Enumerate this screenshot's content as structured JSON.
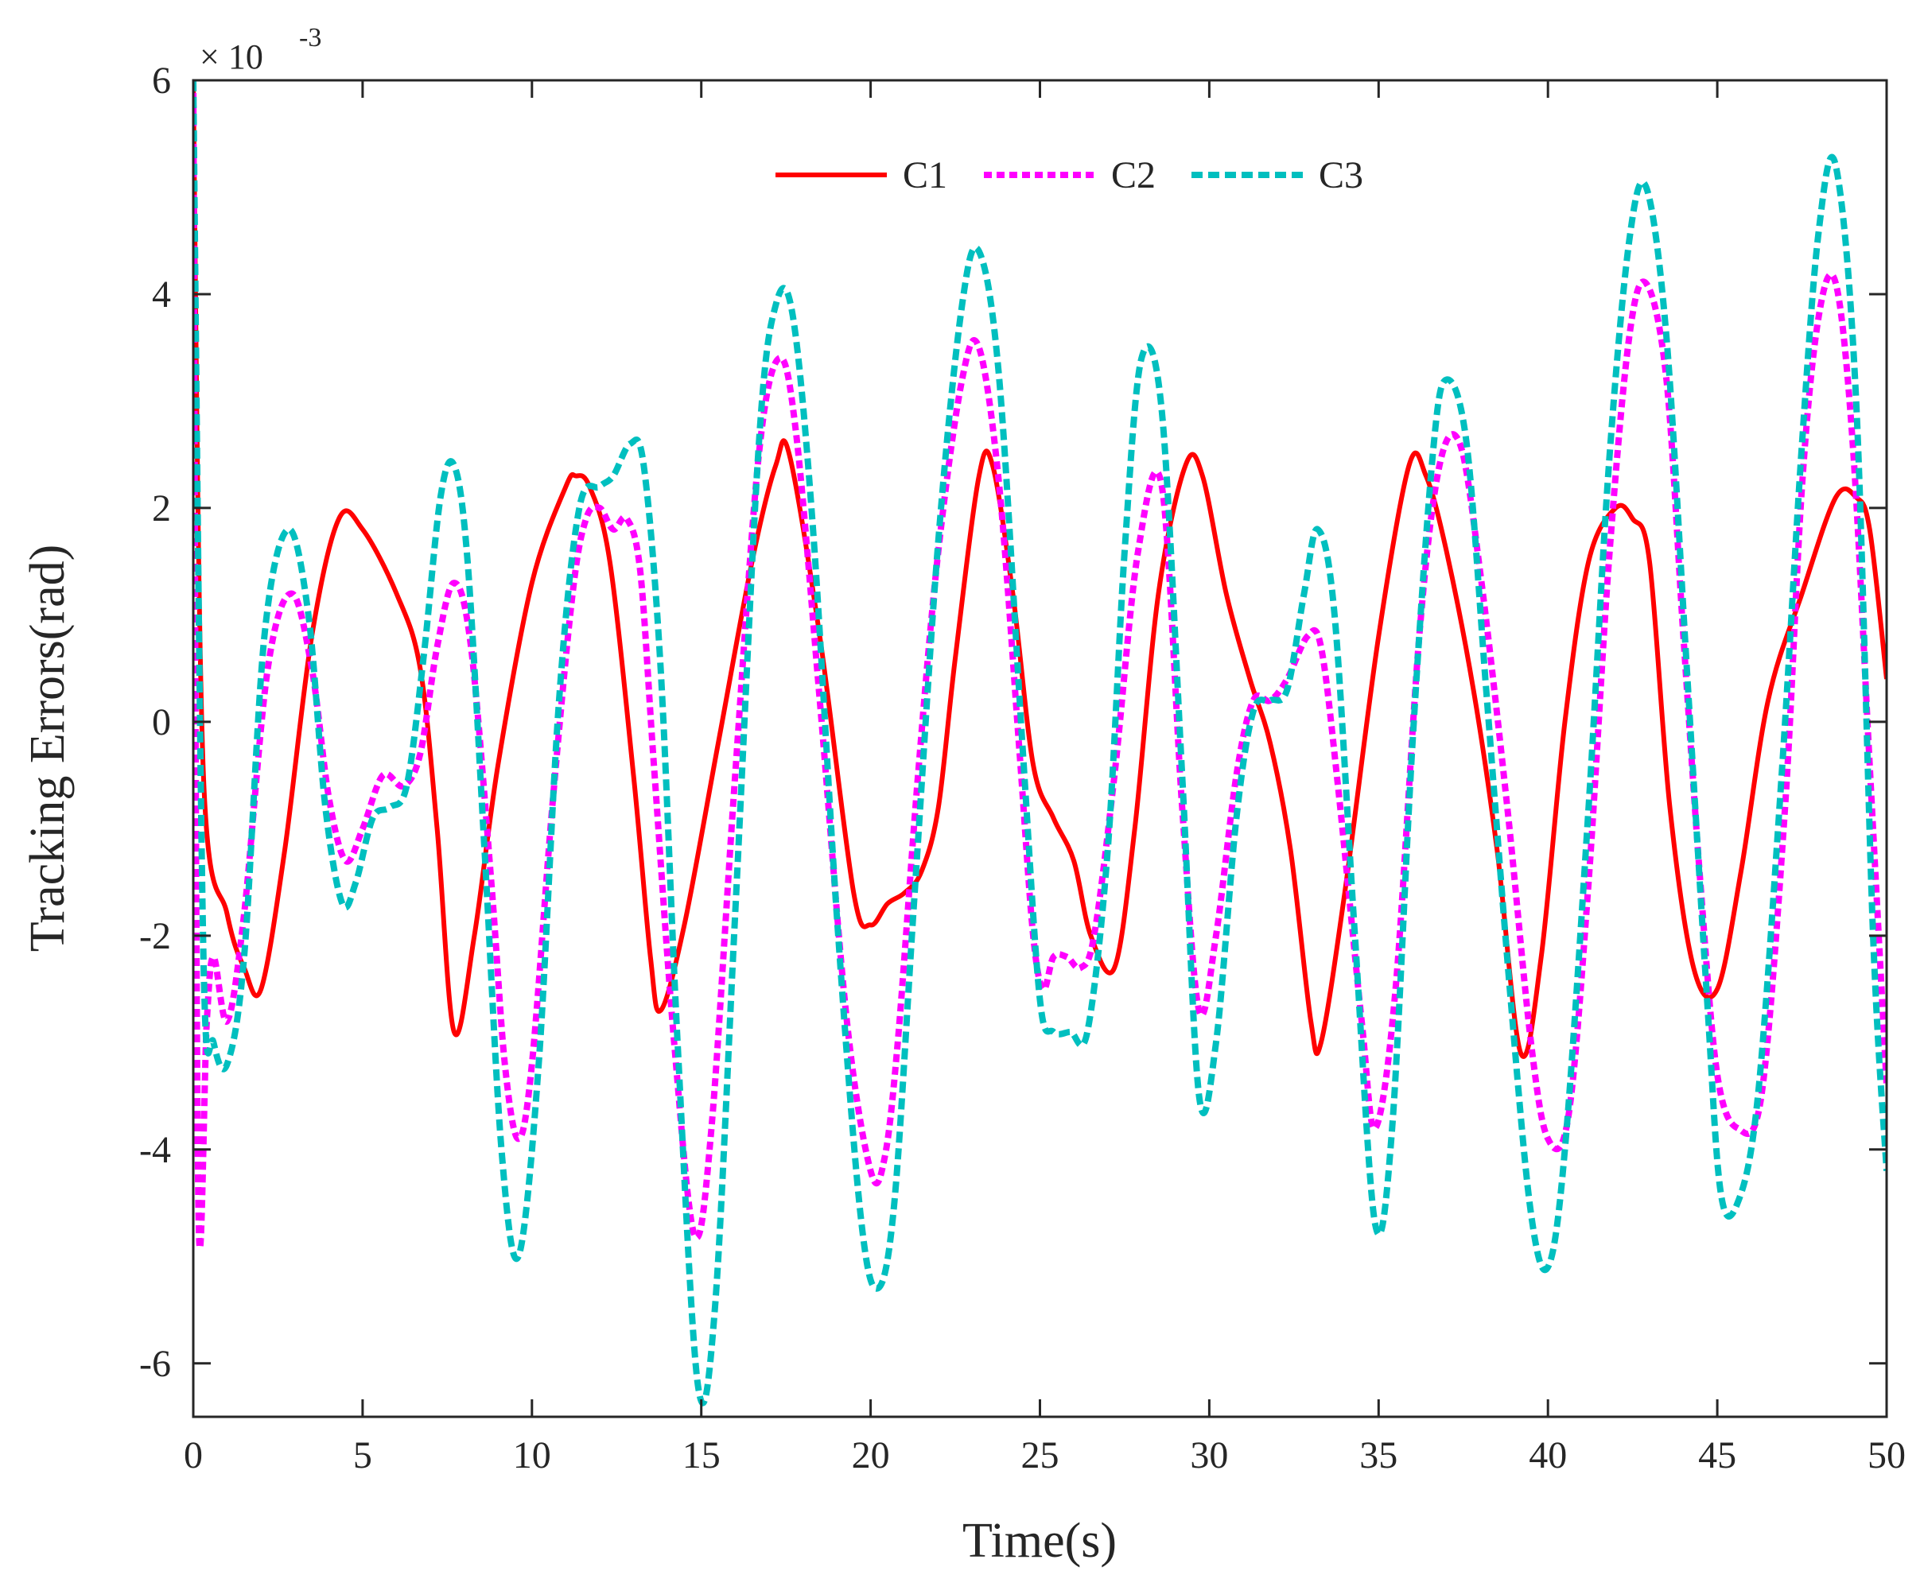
{
  "chart_data": {
    "type": "line",
    "title": "",
    "xlabel": "Time(s)",
    "ylabel": "Tracking Errors(rad)",
    "exponent_prefix": "× 10",
    "exponent_power": "-3",
    "xlim": [
      0,
      50
    ],
    "ylim": [
      -6.5,
      6
    ],
    "xticks": [
      0,
      5,
      10,
      15,
      20,
      25,
      30,
      35,
      40,
      45,
      50
    ],
    "yticks": [
      -6,
      -4,
      -2,
      0,
      2,
      4,
      6
    ],
    "xtick_labels": [
      "0",
      "5",
      "10",
      "15",
      "20",
      "25",
      "30",
      "35",
      "40",
      "45",
      "50"
    ],
    "ytick_labels": [
      "-6",
      "-4",
      "-2",
      "0",
      "2",
      "4",
      "6"
    ],
    "legend_position": "top-center",
    "grid": false,
    "series": [
      {
        "name": "C1",
        "color": "#ff0000",
        "style": "solid",
        "x": [
          0,
          0.3,
          1.0,
          1.5,
          2.0,
          2.7,
          3.5,
          4.3,
          5.0,
          6.0,
          6.7,
          7.2,
          7.7,
          8.3,
          9.0,
          10.0,
          11.0,
          11.3,
          11.7,
          12.3,
          13.0,
          13.5,
          13.8,
          14.5,
          15.5,
          16.5,
          17.2,
          17.6,
          18.5,
          19.5,
          20.0,
          20.5,
          21.0,
          21.5,
          22.0,
          22.5,
          23.2,
          23.6,
          24.2,
          24.8,
          25.4,
          26.0,
          26.5,
          27.2,
          27.8,
          28.5,
          29.3,
          29.8,
          30.5,
          31.2,
          31.8,
          32.4,
          33.0,
          33.3,
          34.0,
          35.0,
          35.9,
          36.4,
          37.0,
          37.8,
          38.5,
          39.2,
          39.8,
          40.5,
          41.2,
          42.0,
          42.5,
          43.0,
          43.6,
          44.3,
          45.0,
          45.7,
          46.5,
          47.5,
          48.5,
          49.1,
          49.5,
          50.0
        ],
        "values": [
          6.0,
          -0.5,
          -1.8,
          -2.3,
          -2.5,
          -1.2,
          0.8,
          1.9,
          1.8,
          1.2,
          0.5,
          -1.0,
          -2.9,
          -2.0,
          -0.4,
          1.3,
          2.2,
          2.3,
          2.2,
          1.5,
          -0.5,
          -2.2,
          -2.7,
          -1.9,
          -0.2,
          1.5,
          2.4,
          2.5,
          0.8,
          -1.6,
          -1.9,
          -1.7,
          -1.6,
          -1.4,
          -0.8,
          0.6,
          2.3,
          2.4,
          1.2,
          -0.4,
          -0.9,
          -1.3,
          -2.0,
          -2.3,
          -1.0,
          1.2,
          2.4,
          2.3,
          1.2,
          0.4,
          -0.2,
          -1.2,
          -2.8,
          -3.0,
          -1.6,
          0.8,
          2.4,
          2.3,
          1.6,
          0.3,
          -1.2,
          -3.1,
          -2.2,
          0.0,
          1.5,
          2.0,
          1.9,
          1.5,
          -0.8,
          -2.3,
          -2.5,
          -1.4,
          0.2,
          1.2,
          2.1,
          2.1,
          1.8,
          0.4
        ]
      },
      {
        "name": "C2",
        "color": "#ff00ff",
        "style": "dotted",
        "x": [
          0,
          0.15,
          0.4,
          0.6,
          1.0,
          1.5,
          2.2,
          2.9,
          3.5,
          4.0,
          4.5,
          5.0,
          5.6,
          6.2,
          6.7,
          7.2,
          7.7,
          8.2,
          8.8,
          9.2,
          9.6,
          10.0,
          10.6,
          11.2,
          11.6,
          12.0,
          12.4,
          12.8,
          13.2,
          13.6,
          14.2,
          14.8,
          15.3,
          16.0,
          16.7,
          17.3,
          17.8,
          18.5,
          19.3,
          20.0,
          20.4,
          20.8,
          21.4,
          22.0,
          22.7,
          23.2,
          23.8,
          24.4,
          24.8,
          25.1,
          25.4,
          25.8,
          26.2,
          26.6,
          27.2,
          27.9,
          28.6,
          29.2,
          29.7,
          30.2,
          30.8,
          31.3,
          31.8,
          32.3,
          32.9,
          33.3,
          33.8,
          34.5,
          34.9,
          35.5,
          36.2,
          36.8,
          37.4,
          38.0,
          38.8,
          39.5,
          40.0,
          40.6,
          41.2,
          41.8,
          42.4,
          42.9,
          43.5,
          44.0,
          44.5,
          45.0,
          45.6,
          46.3,
          47.0,
          47.5,
          48.0,
          48.5,
          49.0,
          49.5,
          50.0
        ],
        "values": [
          6.0,
          -4.5,
          -2.8,
          -2.2,
          -2.8,
          -1.8,
          0.5,
          1.2,
          0.5,
          -0.7,
          -1.3,
          -1.0,
          -0.5,
          -0.6,
          -0.3,
          0.7,
          1.3,
          0.7,
          -1.5,
          -3.2,
          -3.9,
          -3.2,
          -0.8,
          1.2,
          1.9,
          2.0,
          1.8,
          1.9,
          1.4,
          -0.4,
          -3.0,
          -4.8,
          -3.8,
          -0.5,
          2.5,
          3.4,
          2.7,
          0.2,
          -2.8,
          -4.2,
          -4.1,
          -3.0,
          -0.5,
          1.6,
          3.2,
          3.5,
          2.2,
          -0.3,
          -2.0,
          -2.5,
          -2.2,
          -2.2,
          -2.3,
          -2.0,
          -0.5,
          1.6,
          2.2,
          -0.8,
          -2.7,
          -2.0,
          -0.5,
          0.2,
          0.2,
          0.4,
          0.8,
          0.7,
          -0.6,
          -2.8,
          -3.8,
          -2.5,
          0.8,
          2.4,
          2.6,
          1.4,
          -0.8,
          -3.0,
          -3.9,
          -3.7,
          -1.5,
          1.5,
          3.6,
          4.1,
          3.2,
          0.8,
          -1.5,
          -3.3,
          -3.8,
          -3.5,
          -0.8,
          2.2,
          3.8,
          4.1,
          2.6,
          -0.4,
          -3.4
        ]
      },
      {
        "name": "C3",
        "color": "#00bfbf",
        "style": "dashed",
        "x": [
          0,
          0.3,
          0.6,
          1.0,
          1.5,
          2.1,
          2.8,
          3.4,
          3.9,
          4.4,
          4.8,
          5.3,
          5.8,
          6.3,
          6.8,
          7.3,
          7.7,
          8.1,
          8.6,
          9.1,
          9.6,
          10.2,
          10.8,
          11.4,
          12.0,
          12.4,
          12.9,
          13.3,
          13.8,
          14.3,
          14.9,
          15.4,
          16.0,
          16.7,
          17.2,
          17.7,
          18.3,
          19.0,
          19.7,
          20.2,
          20.7,
          21.3,
          22.0,
          22.7,
          23.2,
          23.8,
          24.5,
          25.0,
          25.4,
          25.9,
          26.4,
          27.0,
          27.5,
          28.0,
          28.6,
          29.2,
          29.7,
          30.2,
          30.8,
          31.3,
          31.8,
          32.3,
          32.8,
          33.2,
          33.7,
          34.3,
          34.9,
          35.4,
          36.0,
          36.6,
          37.0,
          37.6,
          38.2,
          38.9,
          39.5,
          40.0,
          40.5,
          41.2,
          41.8,
          42.4,
          42.9,
          43.5,
          44.1,
          44.7,
          45.1,
          45.6,
          46.2,
          46.9,
          47.5,
          48.0,
          48.5,
          49.1,
          49.6,
          50.0
        ],
        "values": [
          6.0,
          -2.2,
          -3.0,
          -3.2,
          -2.2,
          0.8,
          1.8,
          1.0,
          -0.8,
          -1.7,
          -1.5,
          -0.9,
          -0.8,
          -0.6,
          0.6,
          2.1,
          2.4,
          1.5,
          -1.2,
          -4.0,
          -5.0,
          -3.2,
          0.2,
          2.0,
          2.2,
          2.3,
          2.6,
          2.4,
          0.5,
          -3.0,
          -6.2,
          -5.5,
          -1.8,
          2.6,
          3.9,
          3.8,
          1.8,
          -1.8,
          -4.6,
          -5.3,
          -4.5,
          -1.6,
          1.7,
          3.9,
          4.4,
          3.2,
          -0.3,
          -2.6,
          -2.9,
          -2.9,
          -2.9,
          -1.2,
          1.6,
          3.4,
          2.9,
          -0.5,
          -3.5,
          -3.0,
          -0.9,
          0.1,
          0.2,
          0.3,
          1.2,
          1.8,
          1.0,
          -2.0,
          -4.7,
          -3.8,
          -0.2,
          2.5,
          3.2,
          2.6,
          0.2,
          -2.6,
          -4.6,
          -5.1,
          -4.0,
          -0.8,
          2.4,
          4.5,
          5.0,
          3.6,
          0.5,
          -2.6,
          -4.4,
          -4.5,
          -3.5,
          -0.5,
          2.6,
          4.6,
          5.2,
          3.0,
          -2.0,
          -4.2
        ]
      }
    ]
  }
}
